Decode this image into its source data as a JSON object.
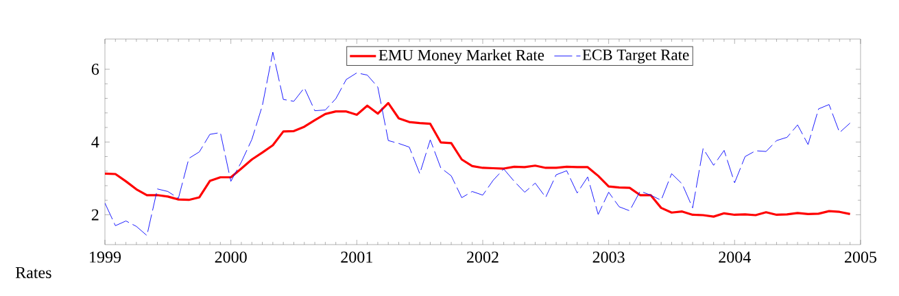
{
  "chart_data": {
    "type": "line",
    "ylabel": "Rates",
    "x": [
      "1999-01",
      "1999-02",
      "1999-03",
      "1999-04",
      "1999-05",
      "1999-06",
      "1999-07",
      "1999-08",
      "1999-09",
      "1999-10",
      "1999-11",
      "1999-12",
      "2000-01",
      "2000-02",
      "2000-03",
      "2000-04",
      "2000-05",
      "2000-06",
      "2000-07",
      "2000-08",
      "2000-09",
      "2000-10",
      "2000-11",
      "2000-12",
      "2001-01",
      "2001-02",
      "2001-03",
      "2001-04",
      "2001-05",
      "2001-06",
      "2001-07",
      "2001-08",
      "2001-09",
      "2001-10",
      "2001-11",
      "2001-12",
      "2002-01",
      "2002-02",
      "2002-03",
      "2002-04",
      "2002-05",
      "2002-06",
      "2002-07",
      "2002-08",
      "2002-09",
      "2002-10",
      "2002-11",
      "2002-12",
      "2003-01",
      "2003-02",
      "2003-03",
      "2003-04",
      "2003-05",
      "2003-06",
      "2003-07",
      "2003-08",
      "2003-09",
      "2003-10",
      "2003-11",
      "2003-12",
      "2004-01",
      "2004-02",
      "2004-03",
      "2004-04",
      "2004-05",
      "2004-06",
      "2004-07",
      "2004-08",
      "2004-09",
      "2004-10",
      "2004-11",
      "2004-12"
    ],
    "series": [
      {
        "name": "EMU Money Market Rate",
        "color": "#ff0000",
        "line_style": "solid",
        "values": [
          3.13,
          3.12,
          2.92,
          2.7,
          2.54,
          2.54,
          2.5,
          2.42,
          2.41,
          2.48,
          2.93,
          3.03,
          3.03,
          3.27,
          3.52,
          3.71,
          3.91,
          4.29,
          4.3,
          4.42,
          4.6,
          4.77,
          4.84,
          4.84,
          4.75,
          5.0,
          4.78,
          5.07,
          4.65,
          4.55,
          4.52,
          4.5,
          3.99,
          3.97,
          3.52,
          3.34,
          3.29,
          3.28,
          3.27,
          3.32,
          3.31,
          3.35,
          3.29,
          3.29,
          3.32,
          3.31,
          3.31,
          3.07,
          2.78,
          2.75,
          2.74,
          2.54,
          2.54,
          2.19,
          2.06,
          2.09,
          2.0,
          1.99,
          1.95,
          2.04,
          2.0,
          2.01,
          1.99,
          2.07,
          2.0,
          2.01,
          2.05,
          2.02,
          2.03,
          2.1,
          2.08,
          2.02
        ]
      },
      {
        "name": "ECB Target Rate",
        "color": "#0000ff",
        "line_style": "dashed",
        "values": [
          2.32,
          1.7,
          1.83,
          1.68,
          1.43,
          2.71,
          2.64,
          2.45,
          3.55,
          3.73,
          4.21,
          4.26,
          2.92,
          3.45,
          4.07,
          5.0,
          6.47,
          5.17,
          5.12,
          5.49,
          4.86,
          4.88,
          5.19,
          5.72,
          5.9,
          5.84,
          5.51,
          4.04,
          3.96,
          3.86,
          3.13,
          4.06,
          3.29,
          3.07,
          2.47,
          2.64,
          2.54,
          2.95,
          3.26,
          2.92,
          2.62,
          2.87,
          2.48,
          3.1,
          3.21,
          2.6,
          3.04,
          2.01,
          2.62,
          2.22,
          2.11,
          2.65,
          2.54,
          2.4,
          3.13,
          2.85,
          2.19,
          3.82,
          3.36,
          3.77,
          2.88,
          3.6,
          3.76,
          3.74,
          4.04,
          4.13,
          4.47,
          3.93,
          4.91,
          5.03,
          4.26,
          4.52
        ]
      }
    ],
    "xlim": [
      "1999",
      "2005"
    ],
    "xticks": [
      "1999",
      "2000",
      "2001",
      "2002",
      "2003",
      "2004",
      "2005"
    ],
    "ylim": [
      1.18,
      6.83
    ],
    "yticks": [
      2,
      4,
      6
    ],
    "legend": "top",
    "grid": false
  }
}
